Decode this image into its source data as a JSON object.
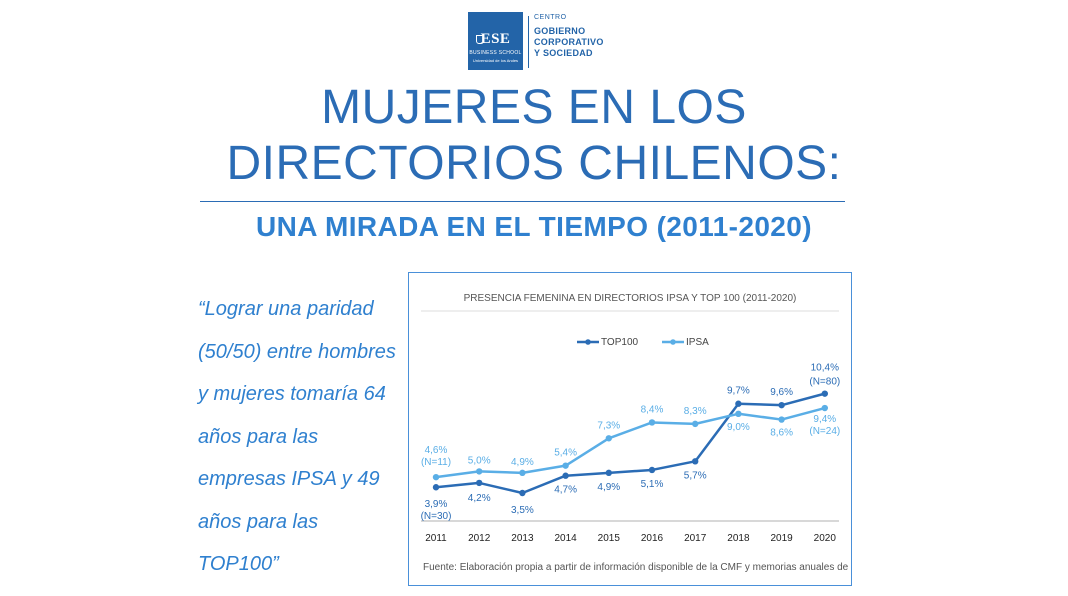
{
  "logo": {
    "name": "ESE",
    "business_school": "BUSINESS SCHOOL",
    "university": "Universidad de los Andes",
    "centre": "CENTRO",
    "line1": "GOBIERNO",
    "line2": "CORPORATIVO",
    "line3": "Y SOCIEDAD"
  },
  "title_line1": "MUJERES EN LOS",
  "title_line2": "DIRECTORIOS CHILENOS:",
  "subtitle": "UNA MIRADA EN EL TIEMPO (2011-2020)",
  "quote": "“Lograr una paridad (50/50) entre hombres y mujeres tomaría 64 años para las empresas IPSA y 49 años para las TOP100”",
  "colors": {
    "top100": "#2b6cb5",
    "ipsa": "#5aaee6",
    "text": "#2b6cb5"
  },
  "chart_data": {
    "type": "line",
    "title": "PRESENCIA FEMENINA EN DIRECTORIOS IPSA Y TOP 100 (2011-2020)",
    "categories": [
      "2011",
      "2012",
      "2013",
      "2014",
      "2015",
      "2016",
      "2017",
      "2018",
      "2019",
      "2020"
    ],
    "series": [
      {
        "name": "TOP100",
        "values": [
          3.9,
          4.2,
          3.5,
          4.7,
          4.9,
          5.1,
          5.7,
          9.7,
          9.6,
          10.4
        ],
        "labels": [
          "3,9%",
          "4,2%",
          "3,5%",
          "4,7%",
          "4,9%",
          "5,1%",
          "5,7%",
          "9,7%",
          "9,6%",
          "10,4%"
        ],
        "notes": {
          "0": "(N=30)",
          "9": "(N=80)"
        }
      },
      {
        "name": "IPSA",
        "values": [
          4.6,
          5.0,
          4.9,
          5.4,
          7.3,
          8.4,
          8.3,
          9.0,
          8.6,
          9.4
        ],
        "labels": [
          "4,6%",
          "5,0%",
          "4,9%",
          "5,4%",
          "7,3%",
          "8,4%",
          "8,3%",
          "9,0%",
          "8,6%",
          "9,4%"
        ],
        "notes": {
          "0": "(N=11)",
          "9": "(N=24)"
        }
      }
    ],
    "legend_position": "top",
    "grid": false,
    "source": "Fuente: Elaboración propia a partir de información disponible de la CMF y memorias anuales de las empresas"
  }
}
